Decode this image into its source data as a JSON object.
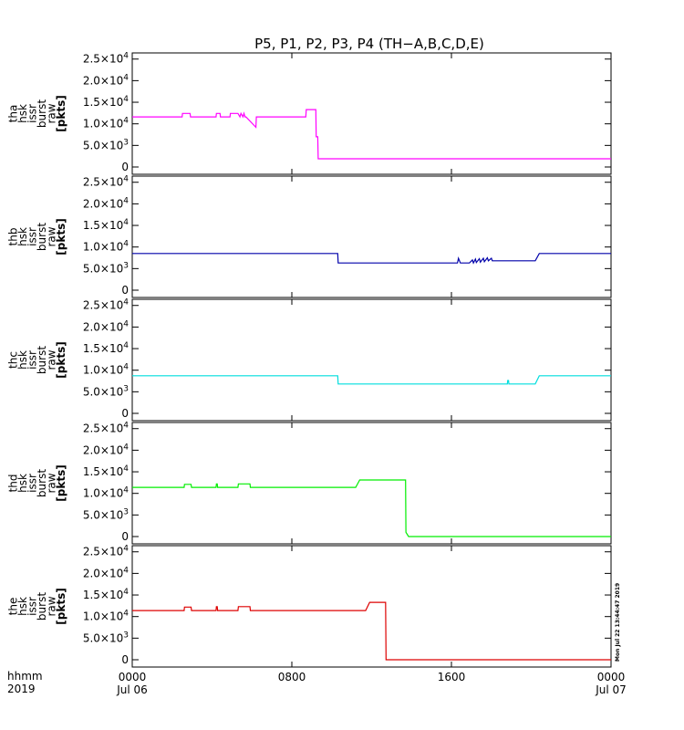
{
  "title": "P5, P1, P2, P3, P4 (TH−A,B,C,D,E)",
  "xaxis": {
    "row_label_1": "hhmm",
    "row_label_2": "2019",
    "ticks": [
      {
        "x": 0,
        "line1": "0000",
        "line2": "Jul 06"
      },
      {
        "x": 8,
        "line1": "0800",
        "line2": ""
      },
      {
        "x": 16,
        "line1": "1600",
        "line2": ""
      },
      {
        "x": 24,
        "line1": "0000",
        "line2": "Jul 07"
      }
    ]
  },
  "yaxis": {
    "ticks": [
      {
        "value": 0,
        "mant": "0",
        "exp": ""
      },
      {
        "value": 5000,
        "mant": "5.0×10",
        "exp": "3"
      },
      {
        "value": 10000,
        "mant": "1.0×10",
        "exp": "4"
      },
      {
        "value": 15000,
        "mant": "1.5×10",
        "exp": "4"
      },
      {
        "value": 20000,
        "mant": "2.0×10",
        "exp": "4"
      },
      {
        "value": 25000,
        "mant": "2.5×10",
        "exp": "4"
      }
    ]
  },
  "timestamp": "Mon Jul 22 13:44:47 2019",
  "chart_data": [
    {
      "type": "line",
      "color": "#ff00ff",
      "xlim": [
        0,
        24
      ],
      "ylim": [
        0,
        26000
      ],
      "ylabel": [
        "tha",
        "hsk",
        "issr",
        "burst",
        "raw",
        "[pkts]"
      ],
      "x": [
        0,
        2.5,
        2.52,
        2.9,
        2.92,
        4.2,
        4.22,
        4.4,
        4.42,
        4.9,
        4.92,
        5.3,
        5.4,
        5.45,
        5.55,
        5.6,
        5.65,
        5.7,
        6.2,
        6.22,
        8.7,
        8.72,
        9.2,
        9.22,
        9.3,
        9.32,
        24
      ],
      "y": [
        11600,
        11600,
        12400,
        12400,
        11600,
        11600,
        12400,
        12400,
        11600,
        11600,
        12400,
        12400,
        11600,
        12400,
        11600,
        12400,
        11600,
        11600,
        9200,
        11600,
        11600,
        13300,
        13300,
        7000,
        7000,
        1900,
        1900
      ]
    },
    {
      "type": "line",
      "color": "#0000aa",
      "xlim": [
        0,
        24
      ],
      "ylim": [
        0,
        26000
      ],
      "ylabel": [
        "thb",
        "hsk",
        "issr",
        "burst",
        "raw",
        "[pkts]"
      ],
      "x": [
        0,
        10.3,
        10.32,
        16.3,
        16.35,
        16.45,
        16.6,
        16.9,
        17.05,
        17.1,
        17.2,
        17.25,
        17.4,
        17.45,
        17.6,
        17.65,
        17.8,
        17.85,
        18.0,
        18.05,
        20.2,
        20.4,
        24
      ],
      "y": [
        8500,
        8500,
        6300,
        6300,
        7400,
        6300,
        6300,
        6300,
        7000,
        6300,
        7200,
        6400,
        7300,
        6500,
        7400,
        6600,
        7500,
        6800,
        7400,
        6800,
        6800,
        8500,
        8500
      ]
    },
    {
      "type": "line",
      "color": "#00dddd",
      "xlim": [
        0,
        24
      ],
      "ylim": [
        0,
        26000
      ],
      "ylabel": [
        "thc",
        "hsk",
        "issr",
        "burst",
        "raw",
        "[pkts]"
      ],
      "x": [
        0,
        10.3,
        10.32,
        18.8,
        18.82,
        18.86,
        18.88,
        20.2,
        20.4,
        24
      ],
      "y": [
        8700,
        8700,
        6800,
        6800,
        7600,
        7600,
        6800,
        6800,
        8700,
        8700
      ]
    },
    {
      "type": "line",
      "color": "#00ee00",
      "xlim": [
        0,
        24
      ],
      "ylim": [
        0,
        26000
      ],
      "ylabel": [
        "thd",
        "hsk",
        "issr",
        "burst",
        "raw",
        "[pkts]"
      ],
      "x": [
        0,
        2.6,
        2.62,
        2.95,
        2.97,
        4.2,
        4.22,
        4.26,
        4.28,
        5.3,
        5.32,
        5.9,
        5.92,
        11.2,
        11.4,
        13.7,
        13.72,
        13.85,
        24
      ],
      "y": [
        11400,
        11400,
        12100,
        12100,
        11400,
        11400,
        12200,
        12200,
        11400,
        11400,
        12200,
        12200,
        11400,
        11400,
        13100,
        13100,
        1000,
        0,
        0
      ]
    },
    {
      "type": "line",
      "color": "#dd0000",
      "xlim": [
        0,
        24
      ],
      "ylim": [
        0,
        26000
      ],
      "ylabel": [
        "the",
        "hsk",
        "issr",
        "burst",
        "raw",
        "[pkts]"
      ],
      "x": [
        0,
        2.6,
        2.62,
        2.95,
        2.97,
        4.2,
        4.22,
        4.26,
        4.28,
        5.3,
        5.32,
        5.9,
        5.92,
        11.7,
        11.9,
        12.7,
        12.72,
        12.8,
        24
      ],
      "y": [
        11400,
        11400,
        12200,
        12200,
        11400,
        11400,
        12300,
        12300,
        11400,
        11400,
        12300,
        12300,
        11400,
        11400,
        13300,
        13300,
        0,
        0,
        0
      ]
    }
  ]
}
